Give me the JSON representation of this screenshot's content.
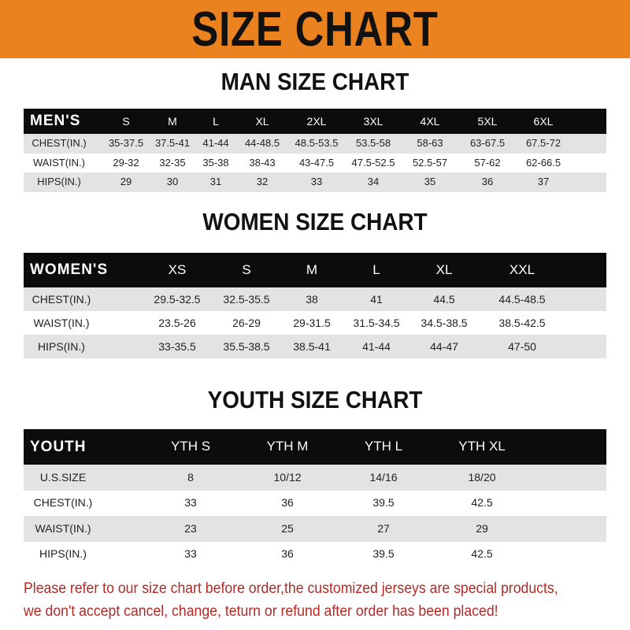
{
  "banner": {
    "title": "SIZE CHART",
    "color": "#e9821f"
  },
  "men": {
    "title": "MAN SIZE CHART",
    "header": "MEN'S",
    "columns": [
      "S",
      "M",
      "L",
      "XL",
      "2XL",
      "3XL",
      "4XL",
      "5XL",
      "6XL"
    ],
    "rows": [
      {
        "label": "CHEST(IN.)",
        "values": [
          "35-37.5",
          "37.5-41",
          "41-44",
          "44-48.5",
          "48.5-53.5",
          "53.5-58",
          "58-63",
          "63-67.5",
          "67.5-72"
        ]
      },
      {
        "label": "WAIST(IN.)",
        "values": [
          "29-32",
          "32-35",
          "35-38",
          "38-43",
          "43-47.5",
          "47.5-52.5",
          "52.5-57",
          "57-62",
          "62-66.5"
        ]
      },
      {
        "label": "HIPS(IN.)",
        "values": [
          "29",
          "30",
          "31",
          "32",
          "33",
          "34",
          "35",
          "36",
          "37"
        ]
      }
    ]
  },
  "women": {
    "title": "WOMEN SIZE CHART",
    "header": "WOMEN'S",
    "columns": [
      "XS",
      "S",
      "M",
      "L",
      "XL",
      "XXL"
    ],
    "rows": [
      {
        "label": "CHEST(IN.)",
        "values": [
          "29.5-32.5",
          "32.5-35.5",
          "38",
          "41",
          "44.5",
          "44.5-48.5"
        ]
      },
      {
        "label": "WAIST(IN.)",
        "values": [
          "23.5-26",
          "26-29",
          "29-31.5",
          "31.5-34.5",
          "34.5-38.5",
          "38.5-42.5"
        ]
      },
      {
        "label": "HIPS(IN.)",
        "values": [
          "33-35.5",
          "35.5-38.5",
          "38.5-41",
          "41-44",
          "44-47",
          "47-50"
        ]
      }
    ]
  },
  "youth": {
    "title": "YOUTH SIZE CHART",
    "header": "YOUTH",
    "columns": [
      "YTH S",
      "YTH M",
      "YTH L",
      "YTH XL"
    ],
    "rows": [
      {
        "label": "U.S.SIZE",
        "values": [
          "8",
          "10/12",
          "14/16",
          "18/20"
        ]
      },
      {
        "label": "CHEST(IN.)",
        "values": [
          "33",
          "36",
          "39.5",
          "42.5"
        ]
      },
      {
        "label": "WAIST(IN.)",
        "values": [
          "23",
          "25",
          "27",
          "29"
        ]
      },
      {
        "label": "HIPS(IN.)",
        "values": [
          "33",
          "36",
          "39.5",
          "42.5"
        ]
      }
    ]
  },
  "note": {
    "line1": "Please refer to our size chart before order,the customized jerseys are special products,",
    "line2": "we don't accept cancel, change, teturn or refund after order has been placed!",
    "color": "#b22a25"
  }
}
